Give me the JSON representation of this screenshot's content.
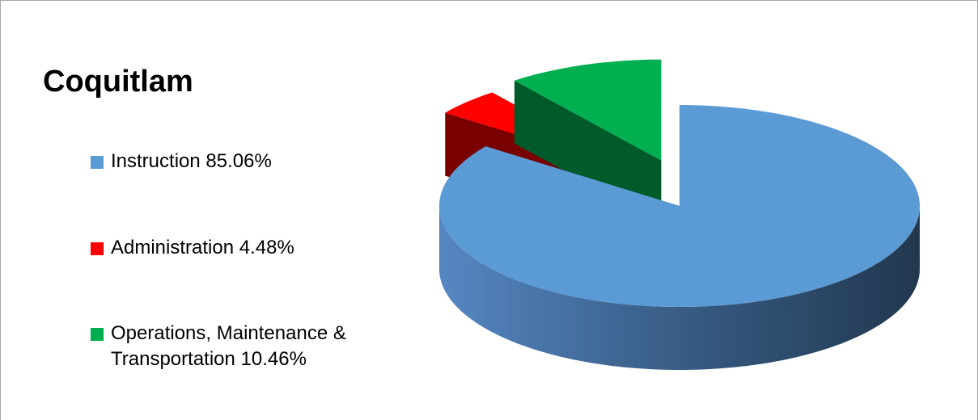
{
  "chart_data": {
    "type": "pie",
    "title": "Coquitlam",
    "categories": [
      "Instruction",
      "Administration",
      "Operations, Maintenance & Transportation"
    ],
    "values": [
      85.06,
      4.48,
      10.46
    ],
    "value_labels": [
      "85.06%",
      "4.48%",
      "10.46%"
    ],
    "colors": [
      "#5b9bd5",
      "#ff0000",
      "#00b050"
    ],
    "three_d": true
  }
}
